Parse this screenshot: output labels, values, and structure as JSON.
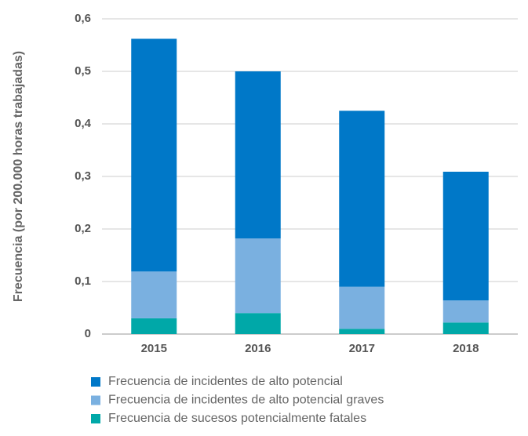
{
  "chart_data": {
    "type": "stacked_bar",
    "y_label": "Frecuencia (por 200.000 horas trabajadas)",
    "categories": [
      "2015",
      "2016",
      "2017",
      "2018"
    ],
    "series": [
      {
        "name": "Frecuencia de incidentes de alto potencial",
        "color": "#0078c8",
        "values": [
          0.443,
          0.318,
          0.335,
          0.245
        ]
      },
      {
        "name": "Frecuencia de incidentes de alto potencial graves",
        "color": "#7ab0e0",
        "values": [
          0.089,
          0.142,
          0.08,
          0.042
        ]
      },
      {
        "name": "Frecuencia de sucesos potencialmente fatales",
        "color": "#00a8a8",
        "values": [
          0.03,
          0.04,
          0.01,
          0.022
        ]
      }
    ],
    "ylim": [
      0,
      0.6
    ],
    "yticks": [
      0,
      {
        "value": 0.1,
        "label": "0,1"
      },
      {
        "value": 0.2,
        "label": "0,2"
      },
      {
        "value": 0.3,
        "label": "0,3"
      },
      {
        "value": 0.4,
        "label": "0,4"
      },
      {
        "value": 0.5,
        "label": "0,5"
      },
      {
        "value": 0.6,
        "label": "0,6"
      }
    ],
    "grid": true
  }
}
